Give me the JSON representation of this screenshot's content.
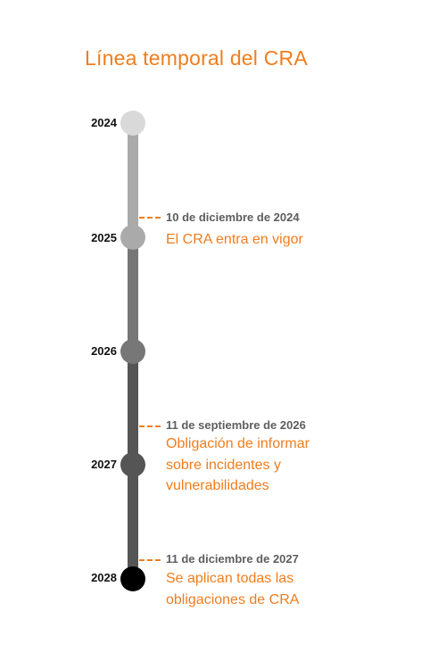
{
  "title": "Línea temporal del CRA",
  "colors": {
    "accent": "#f07d1e",
    "dot_2024": "#d9d9d9",
    "dot_2025": "#aaaaaa",
    "dot_2026": "#777777",
    "dot_2027": "#555555",
    "dot_2028": "#000000"
  },
  "years": [
    "2024",
    "2025",
    "2026",
    "2027",
    "2028"
  ],
  "events": [
    {
      "date": "10 de diciembre de 2024",
      "lines": [
        "El CRA entra en vigor"
      ]
    },
    {
      "date": "11 de septiembre de 2026",
      "lines": [
        "Obligación de informar",
        "sobre incidentes y",
        "vulnerabilidades"
      ]
    },
    {
      "date": "11 de diciembre de 2027",
      "lines": [
        "Se aplican todas las",
        "obligaciones de CRA"
      ]
    }
  ]
}
